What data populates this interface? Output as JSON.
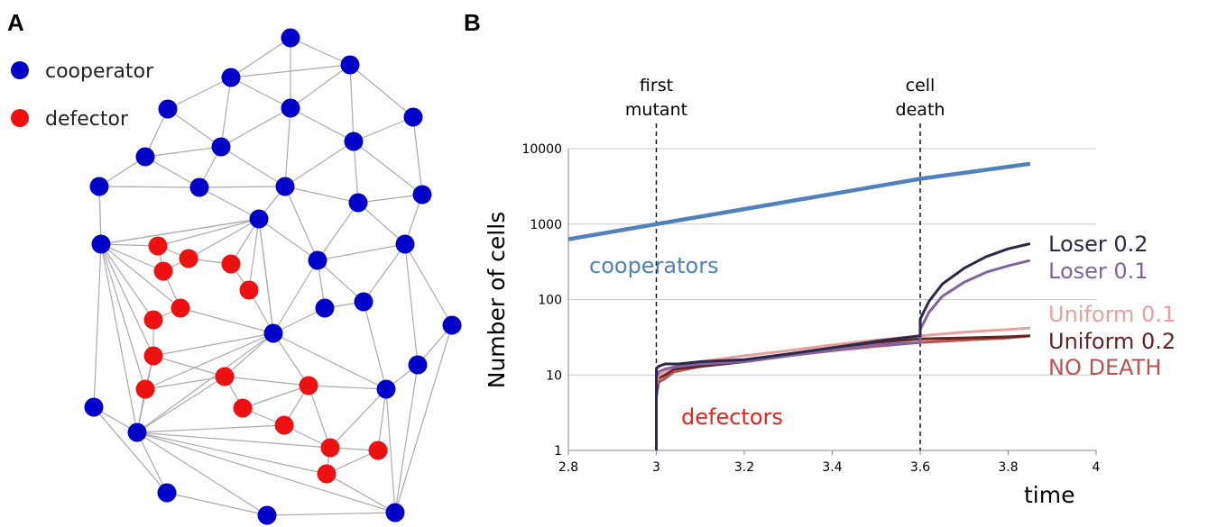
{
  "panels": {
    "a_label": "A",
    "b_label": "B"
  },
  "network": {
    "legend": [
      {
        "label": "cooperator",
        "color": "#0000c8"
      },
      {
        "label": "defector",
        "color": "#ee1111"
      }
    ],
    "node_color_cooperator": "#0000c8",
    "node_color_defector": "#ee1111",
    "edge_color": "#aaaaaa"
  },
  "chart_data": {
    "type": "line",
    "title": "",
    "xlabel": "time",
    "ylabel": "Number of cells",
    "xlim": [
      2.8,
      4
    ],
    "ylim": [
      1,
      10000
    ],
    "y_scale": "log",
    "grid": "horizontal",
    "x_ticks": [
      "2.8",
      "3",
      "3.2",
      "3.4",
      "3.6",
      "3.8",
      "4"
    ],
    "y_ticks": [
      "1",
      "10",
      "100",
      "1000",
      "10000"
    ],
    "annotations": [
      {
        "x": 3.0,
        "text_lines": [
          "first",
          "mutant"
        ]
      },
      {
        "x": 3.6,
        "text_lines": [
          "cell",
          "death"
        ]
      }
    ],
    "category_labels": [
      {
        "text": "cooperators",
        "color": "#4f81bd"
      },
      {
        "text": "defectors",
        "color": "#e8211a"
      }
    ],
    "series": [
      {
        "name": "cooperators",
        "color": "#4f81bd",
        "x": [
          2.8,
          3.0,
          3.2,
          3.4,
          3.6,
          3.85
        ],
        "y": [
          630,
          1000,
          1580,
          2510,
          3980,
          6300
        ]
      },
      {
        "name": "NO DEATH",
        "color": "#c0504d",
        "x": [
          3.0,
          3.0,
          3.005,
          3.02,
          3.04,
          3.1,
          3.2,
          3.3,
          3.4,
          3.5,
          3.6,
          3.7,
          3.8,
          3.85
        ],
        "y": [
          1,
          5,
          8,
          9,
          11,
          13,
          15,
          18,
          21,
          24,
          27,
          29,
          31,
          33
        ]
      },
      {
        "name": "Uniform 0.2",
        "color": "#632523",
        "x": [
          3.0,
          3.0,
          3.005,
          3.02,
          3.04,
          3.1,
          3.2,
          3.3,
          3.4,
          3.5,
          3.6,
          3.7,
          3.8,
          3.85
        ],
        "y": [
          1,
          6,
          9,
          10,
          12,
          13,
          15,
          18,
          23,
          27,
          30,
          31,
          32,
          33
        ]
      },
      {
        "name": "Uniform 0.1",
        "color": "#e6a19e",
        "x": [
          3.0,
          3.0,
          3.005,
          3.02,
          3.04,
          3.1,
          3.2,
          3.3,
          3.4,
          3.5,
          3.6,
          3.7,
          3.8,
          3.85
        ],
        "y": [
          1,
          7,
          10,
          11,
          13,
          15,
          18,
          21,
          25,
          29,
          33,
          37,
          40,
          42
        ]
      },
      {
        "name": "Loser 0.1",
        "color": "#8064a2",
        "x": [
          3.0,
          3.0,
          3.005,
          3.02,
          3.05,
          3.1,
          3.2,
          3.3,
          3.4,
          3.5,
          3.6,
          3.6,
          3.62,
          3.65,
          3.7,
          3.75,
          3.8,
          3.85
        ],
        "y": [
          1,
          9,
          11,
          12,
          13,
          14,
          15,
          18,
          21,
          25,
          27,
          40,
          68,
          110,
          170,
          230,
          280,
          330
        ]
      },
      {
        "name": "Loser 0.2",
        "color": "#2e2748",
        "x": [
          3.0,
          3.0,
          3.005,
          3.02,
          3.05,
          3.1,
          3.2,
          3.3,
          3.4,
          3.5,
          3.6,
          3.6,
          3.62,
          3.65,
          3.7,
          3.75,
          3.8,
          3.85
        ],
        "y": [
          1,
          12,
          13,
          14,
          14,
          15,
          16,
          19,
          23,
          28,
          33,
          55,
          95,
          160,
          260,
          370,
          470,
          550
        ]
      }
    ],
    "legend_labels": [
      {
        "text": "Loser 0.2",
        "color": "#2e2748"
      },
      {
        "text": "Loser 0.1",
        "color": "#8064a2"
      },
      {
        "text": "Uniform 0.1",
        "color": "#e6a19e"
      },
      {
        "text": "Uniform 0.2",
        "color": "#632523"
      },
      {
        "text": "NO DEATH",
        "color": "#c0504d"
      }
    ]
  }
}
